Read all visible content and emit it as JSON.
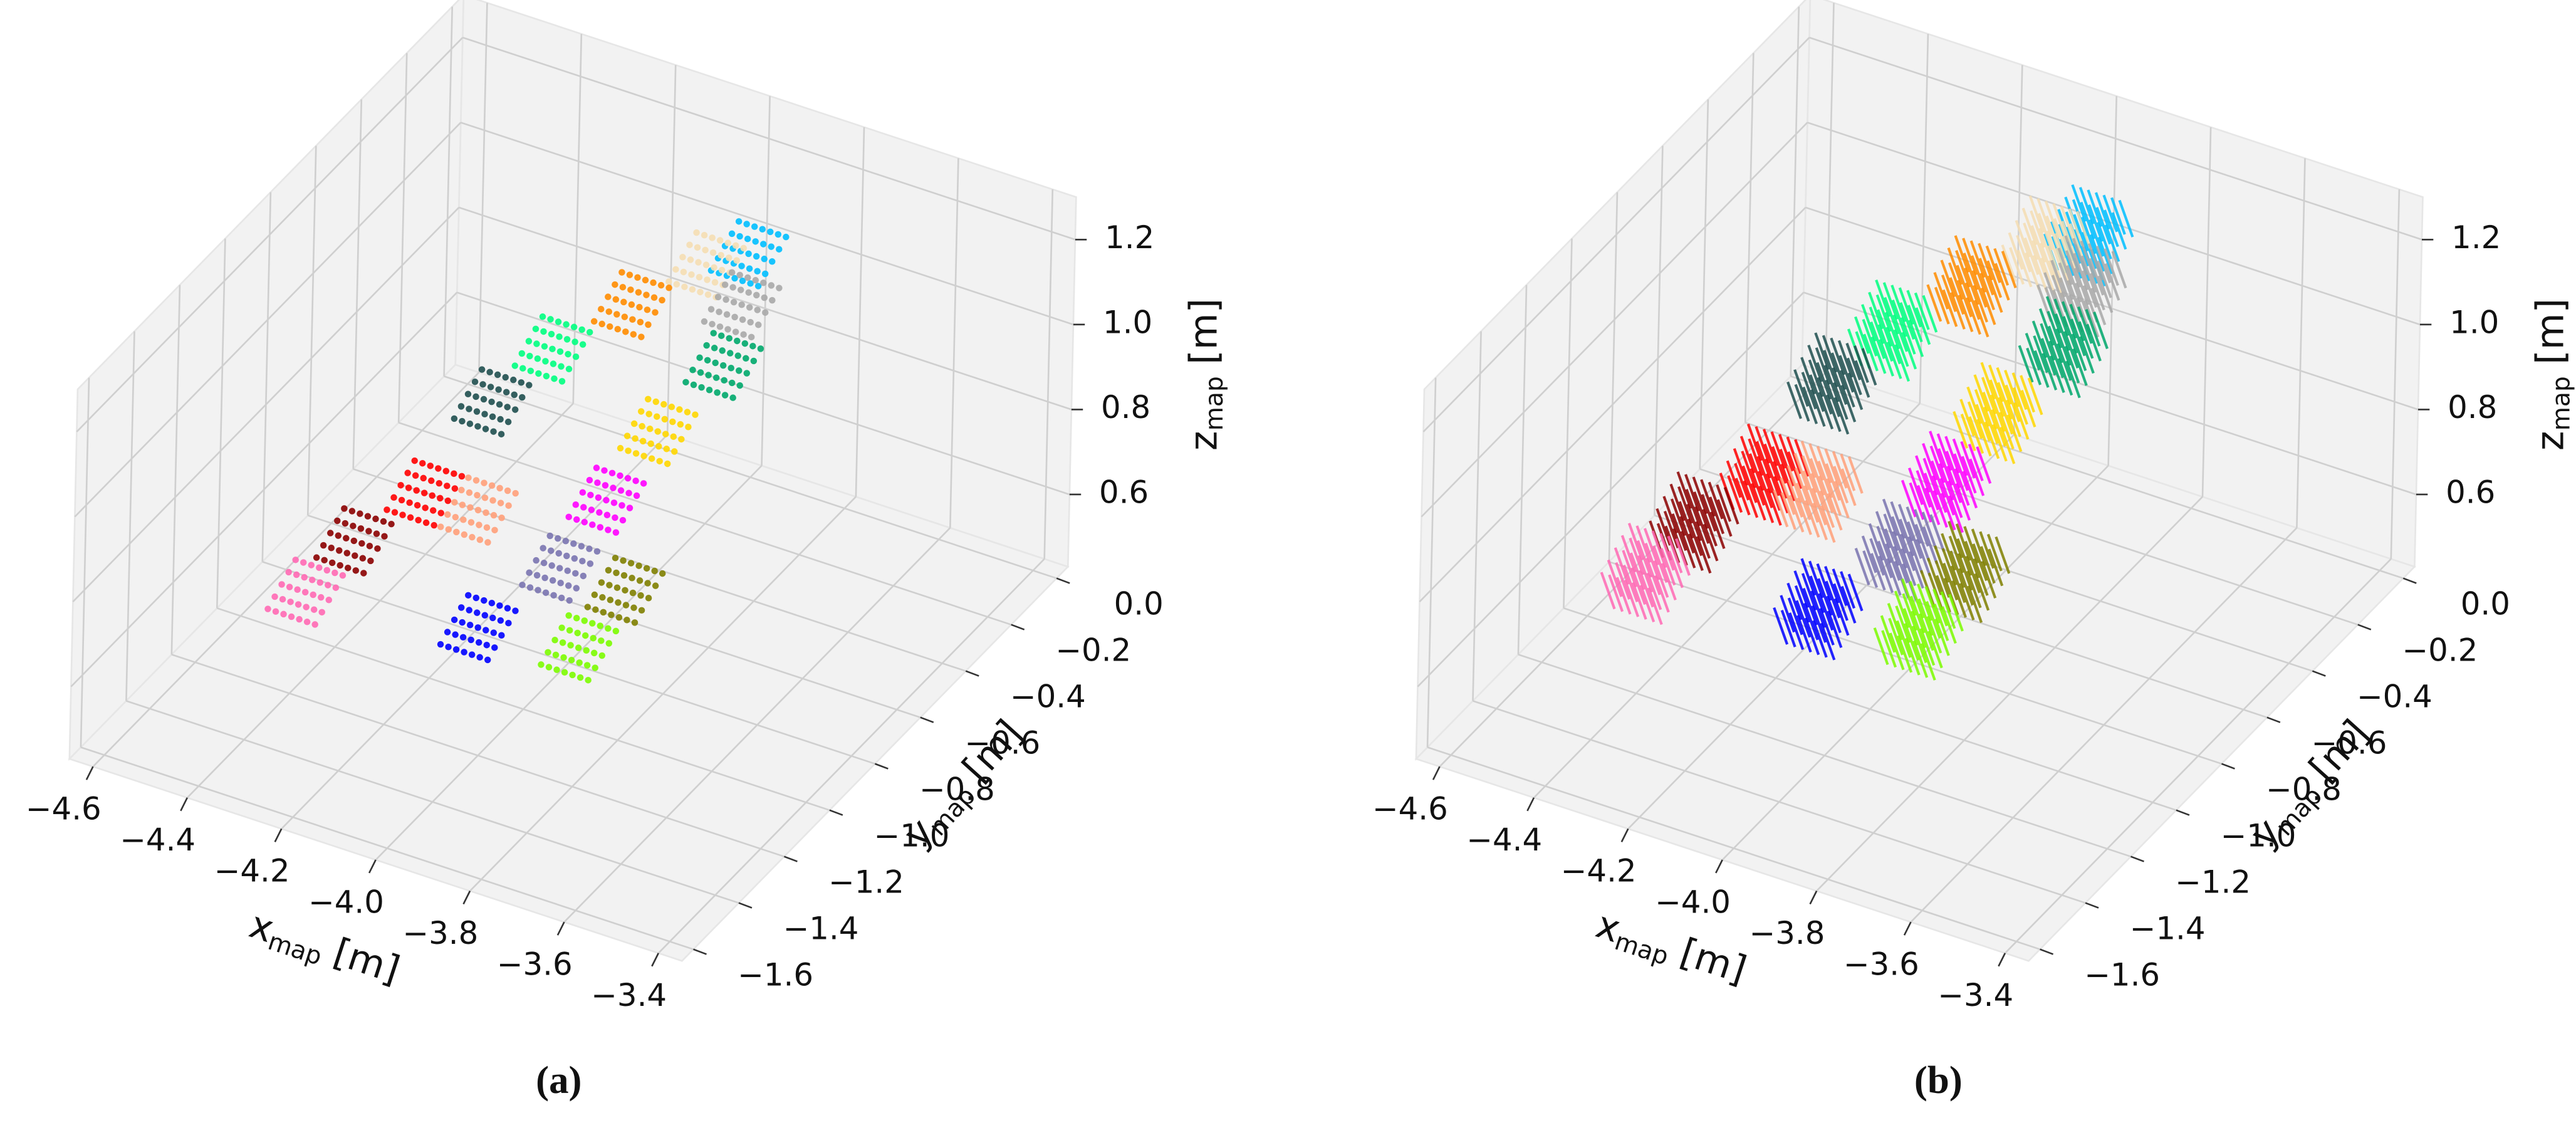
{
  "chart_data": [
    {
      "type": "scatter3d",
      "caption": "(a)",
      "xlabel": {
        "text": "x",
        "sub": "map",
        "unit": "[m]"
      },
      "ylabel": {
        "text": "y",
        "sub": "map",
        "unit": "[m]"
      },
      "zlabel": {
        "text": "z",
        "sub": "map",
        "unit": "[m]"
      },
      "xlim": [
        -4.65,
        -3.35
      ],
      "ylim": [
        -1.65,
        0.05
      ],
      "zlim": [
        0.43,
        1.3
      ],
      "xticks": [
        {
          "value": -4.6,
          "label": "−4.6"
        },
        {
          "value": -4.4,
          "label": "−4.4"
        },
        {
          "value": -4.2,
          "label": "−4.2"
        },
        {
          "value": -4.0,
          "label": "−4.0"
        },
        {
          "value": -3.8,
          "label": "−3.8"
        },
        {
          "value": -3.6,
          "label": "−3.6"
        },
        {
          "value": -3.4,
          "label": "−3.4"
        }
      ],
      "yticks": [
        {
          "value": 0.0,
          "label": "0.0"
        },
        {
          "value": -0.2,
          "label": "−0.2"
        },
        {
          "value": -0.4,
          "label": "−0.4"
        },
        {
          "value": -0.6,
          "label": "−0.6"
        },
        {
          "value": -0.8,
          "label": "−0.8"
        },
        {
          "value": -1.0,
          "label": "−1.0"
        },
        {
          "value": -1.2,
          "label": "−1.2"
        },
        {
          "value": -1.4,
          "label": "−1.4"
        },
        {
          "value": -1.6,
          "label": "−1.6"
        }
      ],
      "zticks": [
        0.6,
        0.8,
        {
          "value": 1.0,
          "label": "1.0"
        },
        1.2
      ],
      "grid": true,
      "x": [
        -4.39,
        -4.36,
        -4.27,
        -4.17,
        -4.24,
        -4.18,
        -4.09,
        -4.0,
        -4.09,
        -3.91,
        -3.88,
        -4.0,
        -3.98,
        -3.94,
        -3.88,
        -3.9,
        -3.93
      ],
      "y": [
        -1.16,
        -1.01,
        -0.89,
        -0.86,
        -0.66,
        -0.52,
        -0.36,
        -0.22,
        -1.02,
        -0.95,
        -0.81,
        -0.85,
        -0.69,
        -0.55,
        -0.39,
        -0.27,
        -0.18
      ],
      "z": [
        0.65,
        0.7,
        0.78,
        0.76,
        0.88,
        0.95,
        1.0,
        1.05,
        0.6,
        0.58,
        0.65,
        0.68,
        0.76,
        0.86,
        0.95,
        1.02,
        1.08
      ],
      "colors": [
        "#ff69b4",
        "#8b0000",
        "#ff0000",
        "#ffa07a",
        "#1f4f4f",
        "#00ff7f",
        "#ff8c00",
        "#f5deb3",
        "#0000ff",
        "#7cfc00",
        "#808000",
        "#7a74b0",
        "#ff00ff",
        "#ffd700",
        "#00a86b",
        "#a9a9a9",
        "#00bfff"
      ]
    },
    {
      "type": "quiver3d",
      "caption": "(b)",
      "xlabel": {
        "text": "x",
        "sub": "map",
        "unit": "[m]"
      },
      "ylabel": {
        "text": "y",
        "sub": "map",
        "unit": "[m]"
      },
      "zlabel": {
        "text": "z",
        "sub": "map",
        "unit": "[m]"
      },
      "xlim": [
        -4.65,
        -3.35
      ],
      "ylim": [
        -1.65,
        0.05
      ],
      "zlim": [
        0.43,
        1.3
      ],
      "xticks": [
        {
          "value": -4.6,
          "label": "−4.6"
        },
        {
          "value": -4.4,
          "label": "−4.4"
        },
        {
          "value": -4.2,
          "label": "−4.2"
        },
        {
          "value": -4.0,
          "label": "−4.0"
        },
        {
          "value": -3.8,
          "label": "−3.8"
        },
        {
          "value": -3.6,
          "label": "−3.6"
        },
        {
          "value": -3.4,
          "label": "−3.4"
        }
      ],
      "yticks": [
        {
          "value": 0.0,
          "label": "0.0"
        },
        {
          "value": -0.2,
          "label": "−0.2"
        },
        {
          "value": -0.4,
          "label": "−0.4"
        },
        {
          "value": -0.6,
          "label": "−0.6"
        },
        {
          "value": -0.8,
          "label": "−0.8"
        },
        {
          "value": -1.0,
          "label": "−1.0"
        },
        {
          "value": -1.2,
          "label": "−1.2"
        },
        {
          "value": -1.4,
          "label": "−1.4"
        },
        {
          "value": -1.6,
          "label": "−1.6"
        }
      ],
      "zticks": [
        0.6,
        0.8,
        {
          "value": 1.0,
          "label": "1.0"
        },
        1.2
      ],
      "grid": true,
      "x": [
        -4.39,
        -4.36,
        -4.27,
        -4.17,
        -4.24,
        -4.18,
        -4.09,
        -4.0,
        -4.09,
        -3.91,
        -3.88,
        -4.0,
        -3.98,
        -3.94,
        -3.88,
        -3.9,
        -3.93
      ],
      "y": [
        -1.16,
        -1.01,
        -0.89,
        -0.86,
        -0.66,
        -0.52,
        -0.36,
        -0.22,
        -1.02,
        -0.95,
        -0.81,
        -0.85,
        -0.69,
        -0.55,
        -0.39,
        -0.27,
        -0.18
      ],
      "z": [
        0.65,
        0.7,
        0.78,
        0.76,
        0.88,
        0.95,
        1.0,
        1.05,
        0.6,
        0.58,
        0.65,
        0.68,
        0.76,
        0.86,
        0.95,
        1.02,
        1.08
      ],
      "colors": [
        "#ff69b4",
        "#8b0000",
        "#ff0000",
        "#ffa07a",
        "#1f4f4f",
        "#00ff7f",
        "#ff8c00",
        "#f5deb3",
        "#0000ff",
        "#7cfc00",
        "#808000",
        "#7a74b0",
        "#ff00ff",
        "#ffd700",
        "#00a86b",
        "#a9a9a9",
        "#00bfff"
      ]
    }
  ]
}
